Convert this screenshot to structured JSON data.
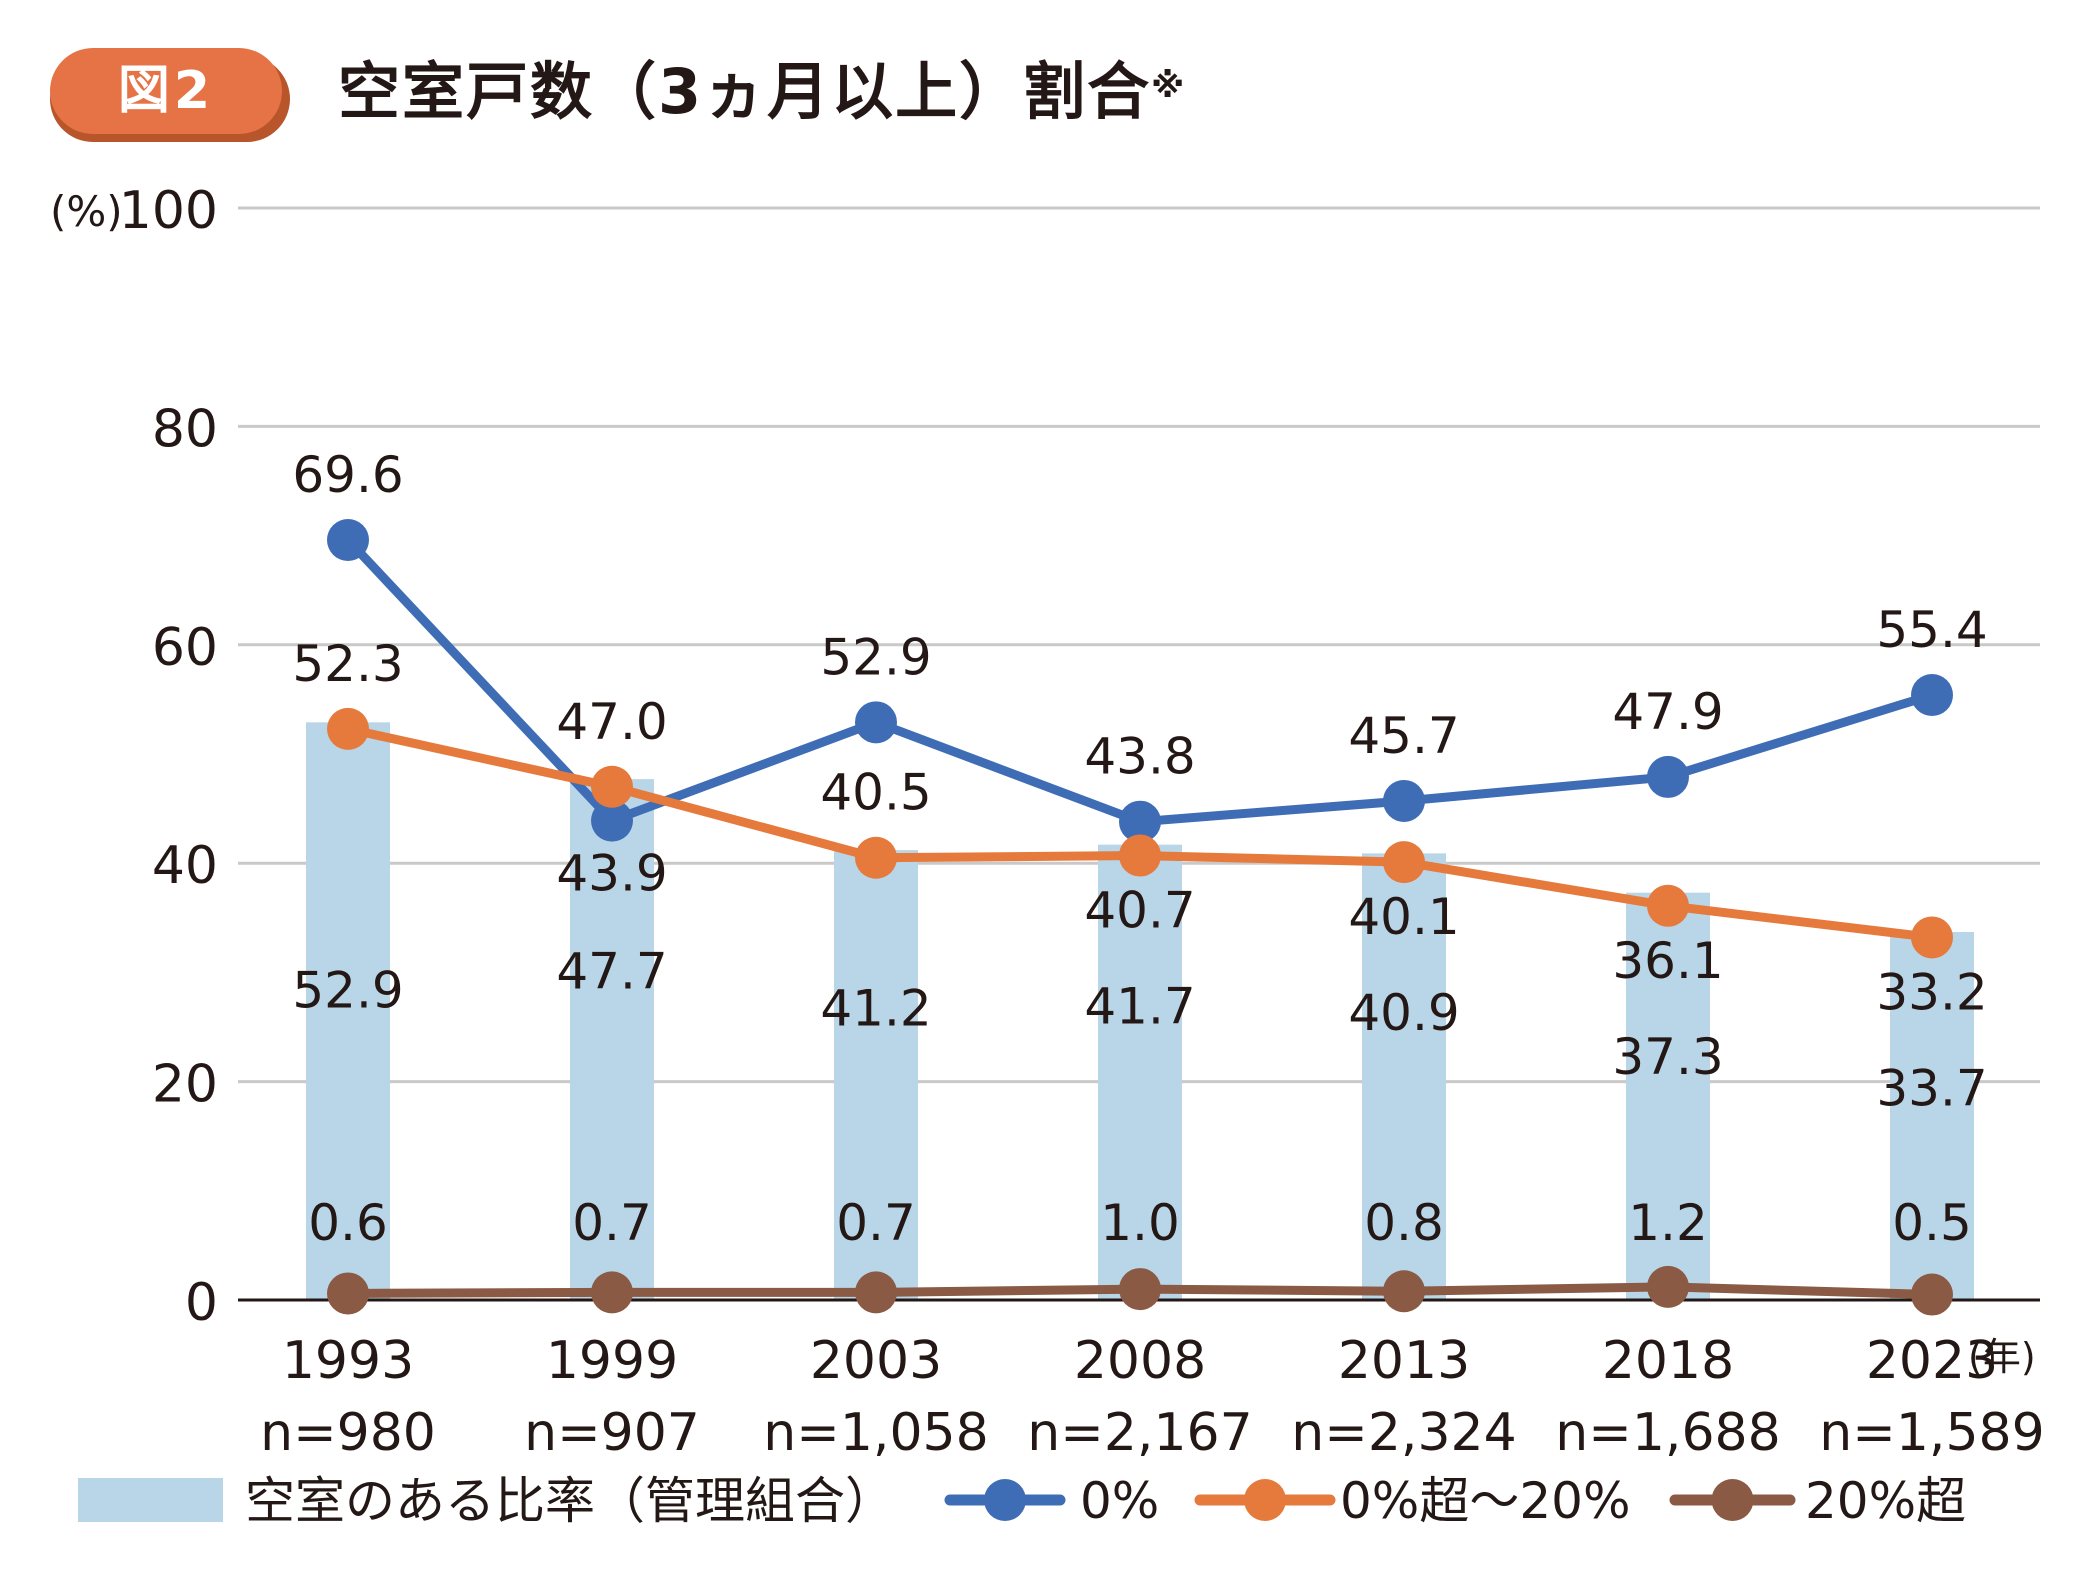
{
  "figure": {
    "badge": "図2",
    "title": "空室戸数（3ヵ月以上）割合",
    "note_mark": "※"
  },
  "chart_data": {
    "type": "bar+line",
    "title": "空室戸数（3ヵ月以上）割合",
    "y_unit": "(%)",
    "x_unit": "(年)",
    "ylim": [
      0,
      100
    ],
    "yticks": [
      0,
      20,
      40,
      60,
      80,
      100
    ],
    "categories": [
      "1993",
      "1999",
      "2003",
      "2008",
      "2013",
      "2018",
      "2023"
    ],
    "category_n": [
      "n=980",
      "n=907",
      "n=1,058",
      "n=2,167",
      "n=2,324",
      "n=1,688",
      "n=1,589"
    ],
    "bars": {
      "name": "空室のある比率（管理組合）",
      "color": "#b9d6e8",
      "values": [
        52.9,
        47.7,
        41.2,
        41.7,
        40.9,
        37.3,
        33.7
      ]
    },
    "series": [
      {
        "name": "0%",
        "color": "#3f6db5",
        "values": [
          69.6,
          43.9,
          52.9,
          43.8,
          45.7,
          47.9,
          55.4
        ]
      },
      {
        "name": "0%超〜20%",
        "color": "#e57a3c",
        "values": [
          52.3,
          47.0,
          40.5,
          40.7,
          40.1,
          36.1,
          33.2
        ]
      },
      {
        "name": "20%超",
        "color": "#8a5a44",
        "values": [
          0.6,
          0.7,
          0.7,
          1.0,
          0.8,
          1.2,
          0.5
        ]
      }
    ]
  }
}
